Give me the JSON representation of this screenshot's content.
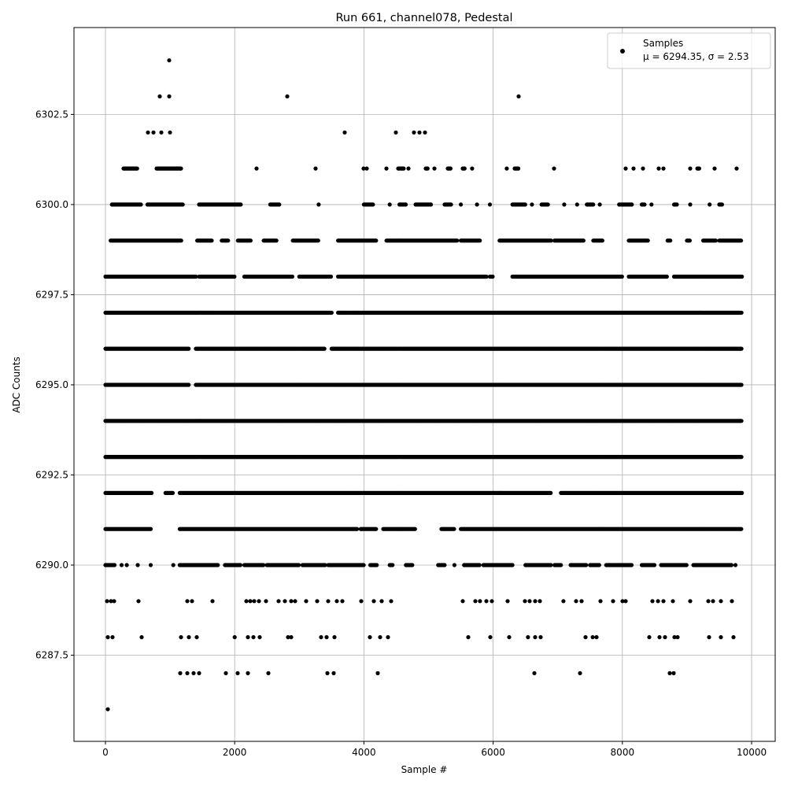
{
  "chart_data": {
    "type": "scatter",
    "title": "Run 661, channel078, Pedestal",
    "xlabel": "Sample #",
    "ylabel": "ADC Counts",
    "xlim": [
      -487,
      10365
    ],
    "ylim": [
      6285.11,
      6304.91
    ],
    "xticks": [
      0,
      2000,
      4000,
      6000,
      8000,
      10000
    ],
    "xtick_labels": [
      "0",
      "2000",
      "4000",
      "6000",
      "8000",
      "10000"
    ],
    "yticks": [
      6287.5,
      6290.0,
      6292.5,
      6295.0,
      6297.5,
      6300.0,
      6302.5
    ],
    "ytick_labels": [
      "6287.5",
      "6290.0",
      "6292.5",
      "6295.0",
      "6297.5",
      "6300.0",
      "6302.5"
    ],
    "grid": true,
    "legend": {
      "placement": "top-right",
      "entries": [
        {
          "label_line1": "Samples",
          "label_line2": "μ = 6294.35, σ = 2.53"
        }
      ]
    },
    "marker_color": "#000000",
    "series": [
      {
        "name": "Samples",
        "levels": [
          {
            "y": 6304,
            "x_ranges": [
              [
                987
              ]
            ]
          },
          {
            "y": 6303,
            "x_ranges": [
              [
                840
              ],
              [
                987
              ],
              [
                2814
              ],
              [
                6395
              ]
            ]
          },
          {
            "y": 6302,
            "x_ranges": [
              [
                658
              ],
              [
                743
              ],
              [
                865
              ],
              [
                999
              ],
              [
                3703
              ],
              [
                4495
              ],
              [
                4775
              ],
              [
                4860
              ],
              [
                4945
              ]
            ]
          },
          {
            "y": 6301,
            "x_ranges": [
              [
                280,
                500
              ],
              [
                792,
                1170
              ],
              [
                2339
              ],
              [
                3252
              ],
              [
                3995
              ],
              [
                4044
              ],
              [
                4348
              ],
              [
                4531,
                4628
              ],
              [
                4689
              ],
              [
                4957,
                4993
              ],
              [
                5091
              ],
              [
                5298,
                5347
              ],
              [
                5530,
                5566
              ],
              [
                5675
              ],
              [
                6211
              ],
              [
                6334,
                6395
              ],
              [
                6943
              ],
              [
                8051
              ],
              [
                8173
              ],
              [
                8319
              ],
              [
                8563
              ],
              [
                8636
              ],
              [
                9050
              ],
              [
                9160,
                9196
              ],
              [
                9427
              ],
              [
                9768
              ]
            ]
          },
          {
            "y": 6300,
            "x_ranges": [
              [
                100,
                550
              ],
              [
                650,
                1200
              ],
              [
                1450,
                2100
              ],
              [
                2550,
                2700
              ],
              [
                3300
              ],
              [
                4000,
                4150
              ],
              [
                4400
              ],
              [
                4550,
                4650
              ],
              [
                4800,
                5050
              ],
              [
                5250,
                5350
              ],
              [
                5500
              ],
              [
                5750
              ],
              [
                5950
              ],
              [
                6300,
                6500
              ],
              [
                6600
              ],
              [
                6750,
                6850
              ],
              [
                7100
              ],
              [
                7300
              ],
              [
                7450,
                7550
              ],
              [
                7650
              ],
              [
                7950,
                8150
              ],
              [
                8300,
                8350
              ],
              [
                8450
              ],
              [
                8800,
                8850
              ],
              [
                9050
              ],
              [
                9350
              ],
              [
                9500,
                9550
              ]
            ]
          },
          {
            "y": 6299,
            "x_ranges": [
              [
                80,
                1180
              ],
              [
                1420,
                1650
              ],
              [
                1800,
                1900
              ],
              [
                2050,
                2250
              ],
              [
                2450,
                2650
              ],
              [
                2900,
                3300
              ],
              [
                3600,
                4200
              ],
              [
                4350,
                5450
              ],
              [
                5500,
                5800
              ],
              [
                6100,
                6900
              ],
              [
                6950,
                7400
              ],
              [
                7550,
                7700
              ],
              [
                8100,
                8400
              ],
              [
                8700,
                8750
              ],
              [
                9000,
                9050
              ],
              [
                9250,
                9450
              ],
              [
                9500,
                9840
              ]
            ]
          },
          {
            "y": 6298,
            "x_ranges": [
              [
                0,
                1400
              ],
              [
                1450,
                2000
              ],
              [
                2150,
                2900
              ],
              [
                3000,
                3500
              ],
              [
                3600,
                5900
              ],
              [
                5950,
                6000
              ],
              [
                6300,
                8000
              ],
              [
                8100,
                8700
              ],
              [
                8800,
                9850
              ]
            ]
          },
          {
            "y": 6297,
            "x_ranges": [
              [
                0,
                3500
              ],
              [
                3600,
                9850
              ]
            ]
          },
          {
            "y": 6296,
            "x_ranges": [
              [
                0,
                1300
              ],
              [
                1400,
                3400
              ],
              [
                3500,
                9850
              ]
            ]
          },
          {
            "y": 6295,
            "x_ranges": [
              [
                0,
                1300
              ],
              [
                1400,
                9850
              ]
            ]
          },
          {
            "y": 6294,
            "x_ranges": [
              [
                0,
                9850
              ]
            ]
          },
          {
            "y": 6293,
            "x_ranges": [
              [
                0,
                9850
              ]
            ]
          },
          {
            "y": 6292,
            "x_ranges": [
              [
                0,
                720
              ],
              [
                930,
                1050
              ],
              [
                1150,
                6900
              ],
              [
                7050,
                9850
              ]
            ]
          },
          {
            "y": 6291,
            "x_ranges": [
              [
                0,
                700
              ],
              [
                1150,
                3900
              ],
              [
                3950,
                4200
              ],
              [
                4300,
                4800
              ],
              [
                5200,
                5400
              ],
              [
                5500,
                9850
              ]
            ]
          },
          {
            "y": 6290,
            "x_ranges": [
              [
                0,
                150
              ],
              [
                250
              ],
              [
                330
              ],
              [
                500
              ],
              [
                700
              ],
              [
                1050
              ],
              [
                1150,
                1750
              ],
              [
                1850,
                2100
              ],
              [
                2150,
                2450
              ],
              [
                2500,
                3000
              ],
              [
                3050,
                3400
              ],
              [
                3450,
                4000
              ],
              [
                4100,
                4200
              ],
              [
                4400,
                4450
              ],
              [
                4650,
                4750
              ],
              [
                5150,
                5250
              ],
              [
                5400
              ],
              [
                5550,
                5800
              ],
              [
                5850,
                6300
              ],
              [
                6500,
                6900
              ],
              [
                6950,
                7050
              ],
              [
                7200,
                7450
              ],
              [
                7500,
                7650
              ],
              [
                7750,
                8150
              ],
              [
                8300,
                8500
              ],
              [
                8600,
                9000
              ],
              [
                9100,
                9700
              ],
              [
                9750
              ]
            ]
          },
          {
            "y": 6289,
            "x_ranges": [
              [
                24
              ],
              [
                85
              ],
              [
                134
              ],
              [
                512
              ],
              [
                1267
              ],
              [
                1340
              ],
              [
                1656
              ],
              [
                2180
              ],
              [
                2241
              ],
              [
                2302
              ],
              [
                2375
              ],
              [
                2485
              ],
              [
                2680
              ],
              [
                2777
              ],
              [
                2874
              ],
              [
                2935
              ],
              [
                3106
              ],
              [
                3276
              ],
              [
                3447
              ],
              [
                3581
              ],
              [
                3666
              ],
              [
                3958
              ],
              [
                4153
              ],
              [
                4275
              ],
              [
                4421
              ],
              [
                5530
              ],
              [
                5724
              ],
              [
                5797
              ],
              [
                5895
              ],
              [
                5980
              ],
              [
                6224
              ],
              [
                6492
              ],
              [
                6565
              ],
              [
                6650
              ],
              [
                6723
              ],
              [
                7088
              ],
              [
                7284
              ],
              [
                7369
              ],
              [
                7661
              ],
              [
                7856
              ],
              [
                8002
              ],
              [
                8051
              ],
              [
                8465
              ],
              [
                8551
              ],
              [
                8636
              ],
              [
                8782
              ],
              [
                9050
              ],
              [
                9330
              ],
              [
                9403
              ],
              [
                9525
              ],
              [
                9695
              ]
            ]
          },
          {
            "y": 6288,
            "x_ranges": [
              [
                37
              ],
              [
                110
              ],
              [
                560
              ],
              [
                1170
              ],
              [
                1291
              ],
              [
                1413
              ],
              [
                2000
              ],
              [
                2205
              ],
              [
                2290
              ],
              [
                2387
              ],
              [
                2826
              ],
              [
                2874
              ],
              [
                3337
              ],
              [
                3423
              ],
              [
                3544
              ],
              [
                4092
              ],
              [
                4251
              ],
              [
                4373
              ],
              [
                5615
              ],
              [
                5956
              ],
              [
                6248
              ],
              [
                6540
              ],
              [
                6650
              ],
              [
                6735
              ],
              [
                7430
              ],
              [
                7540
              ],
              [
                7600
              ],
              [
                8416
              ],
              [
                8575
              ],
              [
                8660
              ],
              [
                8806
              ],
              [
                8855
              ],
              [
                9342
              ],
              [
                9525
              ],
              [
                9720
              ]
            ]
          },
          {
            "y": 6287,
            "x_ranges": [
              [
                1157
              ],
              [
                1267
              ],
              [
                1364
              ],
              [
                1449
              ],
              [
                1864
              ],
              [
                2046
              ],
              [
                2205
              ],
              [
                2521
              ],
              [
                3435
              ],
              [
                3532
              ],
              [
                4214
              ],
              [
                6638
              ],
              [
                7345
              ],
              [
                8733
              ],
              [
                8794
              ]
            ]
          },
          {
            "y": 6286,
            "x_ranges": [
              [
                37
              ]
            ]
          }
        ]
      }
    ]
  }
}
